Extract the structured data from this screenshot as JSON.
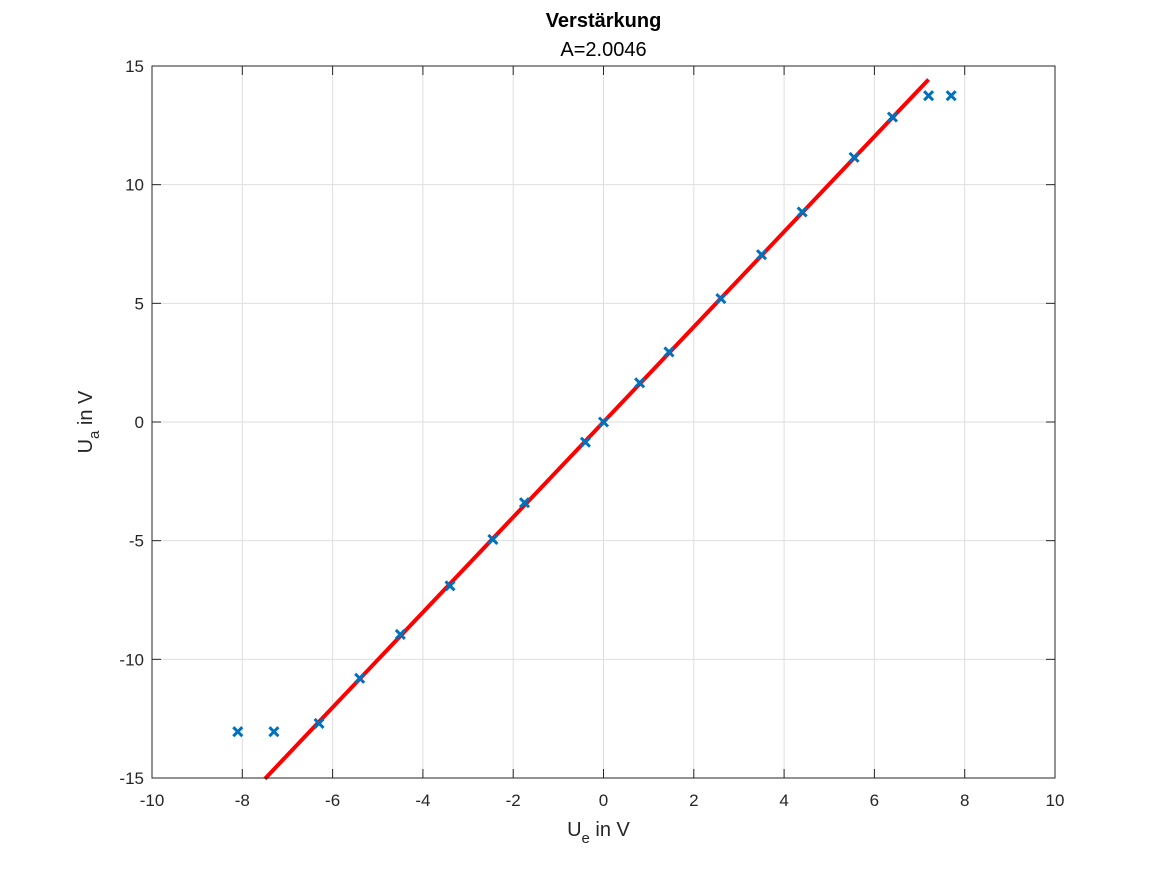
{
  "chart_data": {
    "type": "scatter",
    "title": "Verstärkung",
    "subtitle": "A=2.0046",
    "xlabel": {
      "main": "U",
      "sub": "e",
      "rest": " in V"
    },
    "ylabel": {
      "main": "U",
      "sub": "a",
      "rest": " in V"
    },
    "xlim": [
      -10,
      10
    ],
    "ylim": [
      -15,
      15
    ],
    "xticks": [
      -10,
      -8,
      -6,
      -4,
      -2,
      0,
      2,
      4,
      6,
      8,
      10
    ],
    "yticks": [
      -15,
      -10,
      -5,
      0,
      5,
      10,
      15
    ],
    "xtick_labels": [
      "-10",
      "-8",
      "-6",
      "-4",
      "-2",
      "0",
      "2",
      "4",
      "6",
      "8",
      "10"
    ],
    "ytick_labels": [
      "-15",
      "-10",
      "-5",
      "0",
      "5",
      "10",
      "15"
    ],
    "grid": true,
    "series": [
      {
        "kind": "markers",
        "marker": "x",
        "color": "#0072BD",
        "points": [
          [
            -8.1,
            -13.05
          ],
          [
            -7.3,
            -13.05
          ],
          [
            -6.3,
            -12.7
          ],
          [
            -5.4,
            -10.8
          ],
          [
            -4.5,
            -8.95
          ],
          [
            -3.4,
            -6.9
          ],
          [
            -2.45,
            -4.95
          ],
          [
            -1.75,
            -3.4
          ],
          [
            -0.4,
            -0.85
          ],
          [
            0.0,
            0.0
          ],
          [
            0.8,
            1.65
          ],
          [
            1.45,
            2.95
          ],
          [
            2.6,
            5.2
          ],
          [
            3.5,
            7.05
          ],
          [
            4.4,
            8.85
          ],
          [
            5.55,
            11.15
          ],
          [
            6.4,
            12.85
          ],
          [
            7.2,
            13.75
          ],
          [
            7.7,
            13.75
          ]
        ]
      },
      {
        "kind": "line",
        "color": "#FF0000",
        "slope": 2.0046,
        "intercept": 0,
        "x_range": [
          -7.5,
          7.2
        ]
      }
    ]
  }
}
